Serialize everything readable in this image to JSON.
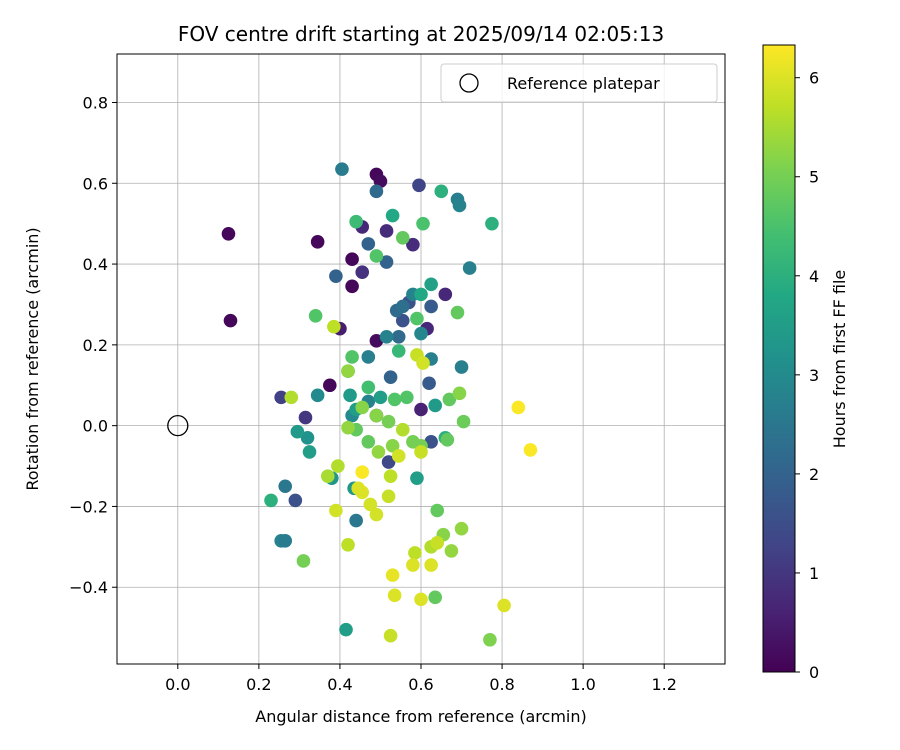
{
  "chart_data": {
    "type": "scatter",
    "title": "FOV centre drift starting at 2025/09/14 02:05:13",
    "xlabel": "Angular distance from reference (arcmin)",
    "ylabel": "Rotation from reference (arcmin)",
    "xlim": [
      -0.15,
      1.35
    ],
    "ylim": [
      -0.59,
      0.92
    ],
    "xticks": [
      0.0,
      0.2,
      0.4,
      0.6,
      0.8,
      1.0,
      1.2
    ],
    "xtick_labels": [
      "0.0",
      "0.2",
      "0.4",
      "0.6",
      "0.8",
      "1.0",
      "1.2"
    ],
    "yticks": [
      -0.4,
      -0.2,
      0.0,
      0.2,
      0.4,
      0.6,
      0.8
    ],
    "ytick_labels": [
      "−0.4",
      "−0.2",
      "0.0",
      "0.2",
      "0.4",
      "0.6",
      "0.8"
    ],
    "grid": true,
    "legend": {
      "placement": "top-right",
      "entries": [
        "Reference platepar"
      ]
    },
    "reference_point": {
      "x": 0.0,
      "y": 0.0,
      "label": "Reference platepar"
    },
    "colorbar": {
      "label": "Hours from first FF file",
      "range": [
        0,
        6.33
      ],
      "ticks": [
        0,
        1,
        2,
        3,
        4,
        5,
        6
      ],
      "tick_labels": [
        "0",
        "1",
        "2",
        "3",
        "4",
        "5",
        "6"
      ],
      "colormap": "viridis"
    },
    "series": [
      {
        "points": [
          [
            0.125,
            0.475,
            0.1
          ],
          [
            0.13,
            0.26,
            0.1
          ],
          [
            0.345,
            0.455,
            0.1
          ],
          [
            0.375,
            0.1,
            0.1
          ],
          [
            0.43,
            0.345,
            0.1
          ],
          [
            0.43,
            0.412,
            0.1
          ],
          [
            0.49,
            0.622,
            0.1
          ],
          [
            0.5,
            0.605,
            0.2
          ],
          [
            0.49,
            0.21,
            0.2
          ],
          [
            0.49,
            0.025,
            0.2
          ],
          [
            0.4,
            0.24,
            0.5
          ],
          [
            0.455,
            0.492,
            0.7
          ],
          [
            0.455,
            0.38,
            0.9
          ],
          [
            0.515,
            0.482,
            0.8
          ],
          [
            0.58,
            0.448,
            0.8
          ],
          [
            0.6,
            0.04,
            0.6
          ],
          [
            0.615,
            0.24,
            0.7
          ],
          [
            0.66,
            0.325,
            0.7
          ],
          [
            0.255,
            0.07,
            1.2
          ],
          [
            0.315,
            0.02,
            1.0
          ],
          [
            0.29,
            -0.185,
            1.6
          ],
          [
            0.595,
            0.595,
            1.3
          ],
          [
            0.52,
            -0.09,
            1.4
          ],
          [
            0.555,
            0.26,
            1.6
          ],
          [
            0.57,
            0.305,
            1.6
          ],
          [
            0.625,
            0.295,
            1.8
          ],
          [
            0.62,
            0.105,
            1.8
          ],
          [
            0.625,
            -0.04,
            1.6
          ],
          [
            0.39,
            0.37,
            2.0
          ],
          [
            0.47,
            0.45,
            2.0
          ],
          [
            0.49,
            0.58,
            2.2
          ],
          [
            0.515,
            0.405,
            2.0
          ],
          [
            0.525,
            0.12,
            2.0
          ],
          [
            0.54,
            0.285,
            2.2
          ],
          [
            0.545,
            0.22,
            2.2
          ],
          [
            0.555,
            0.295,
            2.3
          ],
          [
            0.44,
            -0.235,
            2.5
          ],
          [
            0.405,
            0.635,
            2.6
          ],
          [
            0.265,
            -0.15,
            2.5
          ],
          [
            0.255,
            -0.285,
            2.8
          ],
          [
            0.265,
            -0.285,
            2.6
          ],
          [
            0.345,
            0.075,
            3.0
          ],
          [
            0.43,
            0.025,
            3.0
          ],
          [
            0.47,
            0.06,
            2.8
          ],
          [
            0.47,
            0.17,
            2.7
          ],
          [
            0.515,
            0.22,
            2.8
          ],
          [
            0.58,
            0.325,
            2.8
          ],
          [
            0.625,
            0.165,
            2.7
          ],
          [
            0.72,
            0.39,
            2.7
          ],
          [
            0.69,
            0.56,
            2.7
          ],
          [
            0.695,
            0.545,
            2.8
          ],
          [
            0.7,
            0.145,
            2.7
          ],
          [
            0.6,
            0.228,
            2.9
          ],
          [
            0.32,
            -0.03,
            3.2
          ],
          [
            0.295,
            -0.015,
            3.4
          ],
          [
            0.325,
            -0.065,
            3.5
          ],
          [
            0.38,
            -0.13,
            3.3
          ],
          [
            0.425,
            0.075,
            3.4
          ],
          [
            0.44,
            0.04,
            3.5
          ],
          [
            0.435,
            -0.155,
            3.3
          ],
          [
            0.59,
            -0.13,
            3.5
          ],
          [
            0.625,
            0.35,
            3.6
          ],
          [
            0.635,
            0.05,
            3.4
          ],
          [
            0.6,
            0.325,
            3.8
          ],
          [
            0.415,
            -0.505,
            3.5
          ],
          [
            0.53,
            0.52,
            3.8
          ],
          [
            0.5,
            0.07,
            3.5
          ],
          [
            0.65,
            0.58,
            4.0
          ],
          [
            0.66,
            -0.03,
            4.0
          ],
          [
            0.775,
            0.5,
            4.0
          ],
          [
            0.23,
            -0.185,
            4.0
          ],
          [
            0.42,
            0.135,
            4.0
          ],
          [
            0.44,
            0.505,
            4.3
          ],
          [
            0.545,
            0.185,
            4.2
          ],
          [
            0.49,
            0.42,
            4.6
          ],
          [
            0.605,
            0.5,
            4.5
          ],
          [
            0.59,
            0.265,
            4.6
          ],
          [
            0.535,
            0.065,
            4.6
          ],
          [
            0.565,
            0.07,
            4.6
          ],
          [
            0.47,
            0.095,
            4.4
          ],
          [
            0.43,
            0.17,
            4.6
          ],
          [
            0.34,
            0.272,
            4.6
          ],
          [
            0.555,
            0.465,
            4.8
          ],
          [
            0.44,
            -0.01,
            4.8
          ],
          [
            0.47,
            -0.04,
            4.8
          ],
          [
            0.52,
            0.01,
            5.0
          ],
          [
            0.58,
            -0.04,
            5.0
          ],
          [
            0.6,
            -0.05,
            5.0
          ],
          [
            0.635,
            -0.425,
            4.8
          ],
          [
            0.64,
            -0.21,
            4.8
          ],
          [
            0.665,
            -0.035,
            4.8
          ],
          [
            0.67,
            0.065,
            4.8
          ],
          [
            0.69,
            0.28,
            4.8
          ],
          [
            0.705,
            0.01,
            4.9
          ],
          [
            0.655,
            -0.27,
            5.2
          ],
          [
            0.495,
            -0.065,
            5.3
          ],
          [
            0.53,
            -0.05,
            5.2
          ],
          [
            0.49,
            0.025,
            5.2
          ],
          [
            0.31,
            -0.335,
            5.0
          ],
          [
            0.695,
            0.08,
            5.2
          ],
          [
            0.7,
            -0.255,
            5.3
          ],
          [
            0.675,
            -0.31,
            5.3
          ],
          [
            0.77,
            -0.53,
            5.1
          ],
          [
            0.455,
            0.045,
            5.2
          ],
          [
            0.42,
            -0.005,
            5.3
          ],
          [
            0.42,
            0.135,
            5.3
          ],
          [
            0.28,
            0.07,
            5.6
          ],
          [
            0.37,
            -0.125,
            5.5
          ],
          [
            0.385,
            0.245,
            5.7
          ],
          [
            0.395,
            -0.1,
            5.6
          ],
          [
            0.555,
            -0.01,
            5.6
          ],
          [
            0.585,
            -0.315,
            5.7
          ],
          [
            0.625,
            -0.3,
            5.6
          ],
          [
            0.64,
            -0.29,
            5.8
          ],
          [
            0.6,
            -0.065,
            5.8
          ],
          [
            0.59,
            0.175,
            5.8
          ],
          [
            0.605,
            0.155,
            5.9
          ],
          [
            0.525,
            -0.125,
            5.7
          ],
          [
            0.52,
            -0.175,
            5.8
          ],
          [
            0.525,
            -0.52,
            5.8
          ],
          [
            0.545,
            -0.075,
            5.9
          ],
          [
            0.42,
            -0.295,
            5.7
          ],
          [
            0.475,
            -0.195,
            5.9
          ],
          [
            0.49,
            -0.22,
            5.9
          ],
          [
            0.39,
            -0.21,
            5.9
          ],
          [
            0.445,
            -0.155,
            6.0
          ],
          [
            0.455,
            -0.165,
            6.0
          ],
          [
            0.535,
            -0.42,
            6.0
          ],
          [
            0.58,
            -0.345,
            6.0
          ],
          [
            0.6,
            -0.43,
            6.0
          ],
          [
            0.625,
            -0.345,
            6.0
          ],
          [
            0.53,
            -0.37,
            6.1
          ],
          [
            0.805,
            -0.445,
            6.0
          ],
          [
            0.455,
            -0.115,
            6.3
          ],
          [
            0.84,
            0.045,
            6.3
          ],
          [
            0.87,
            -0.06,
            6.3
          ]
        ]
      }
    ]
  }
}
